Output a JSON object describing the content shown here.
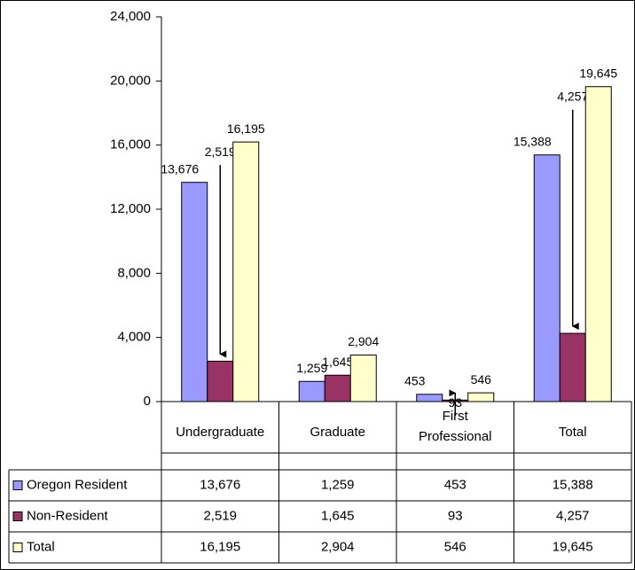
{
  "chart_data": {
    "type": "bar",
    "categories": [
      "Undergraduate",
      "Graduate",
      "First Professional",
      "Total"
    ],
    "series": [
      {
        "name": "Oregon Resident",
        "color": "#9999ff",
        "values": [
          13676,
          1259,
          453,
          15388
        ],
        "value_labels": [
          "13,676",
          "1,259",
          "453",
          "15,388"
        ]
      },
      {
        "name": "Non-Resident",
        "color": "#993366",
        "values": [
          2519,
          1645,
          93,
          4257
        ],
        "value_labels": [
          "2,519",
          "1,645",
          "93",
          "4,257"
        ]
      },
      {
        "name": "Total",
        "color": "#ffffcc",
        "values": [
          16195,
          2904,
          546,
          19645
        ],
        "value_labels": [
          "16,195",
          "2,904",
          "546",
          "19,645"
        ]
      }
    ],
    "ylim": [
      0,
      24000
    ],
    "yticks": [
      0,
      {
        "value": 4000,
        "label": "4,000"
      },
      {
        "value": 8000,
        "label": "8,000"
      },
      {
        "value": 12000,
        "label": "12,000"
      },
      {
        "value": 16000,
        "label": "16,000"
      },
      {
        "value": 20000,
        "label": "20,000"
      },
      {
        "value": 24000,
        "label": "24,000"
      }
    ],
    "data_table": true
  }
}
